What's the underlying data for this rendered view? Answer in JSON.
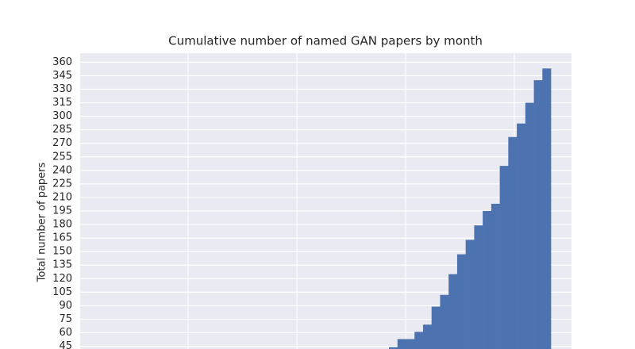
{
  "chart_data": {
    "type": "bar",
    "title": "Cumulative number of named GAN papers by month",
    "y_label": "Total number of papers",
    "categories": [
      null,
      null,
      null,
      null,
      null,
      null,
      null,
      null,
      null,
      null,
      null,
      null,
      null,
      null,
      null,
      null,
      null,
      null,
      null
    ],
    "values": [
      44,
      53,
      53,
      61,
      69,
      89,
      102,
      125,
      147,
      163,
      179,
      195,
      203,
      245,
      277,
      292,
      315,
      340,
      353
    ],
    "color": "#4c72b0",
    "ylim": [
      42,
      370
    ],
    "yticks": [
      45,
      60,
      75,
      90,
      105,
      120,
      135,
      150,
      165,
      180,
      195,
      210,
      225,
      240,
      255,
      270,
      285,
      300,
      315,
      330,
      345,
      360
    ],
    "grid": true
  }
}
